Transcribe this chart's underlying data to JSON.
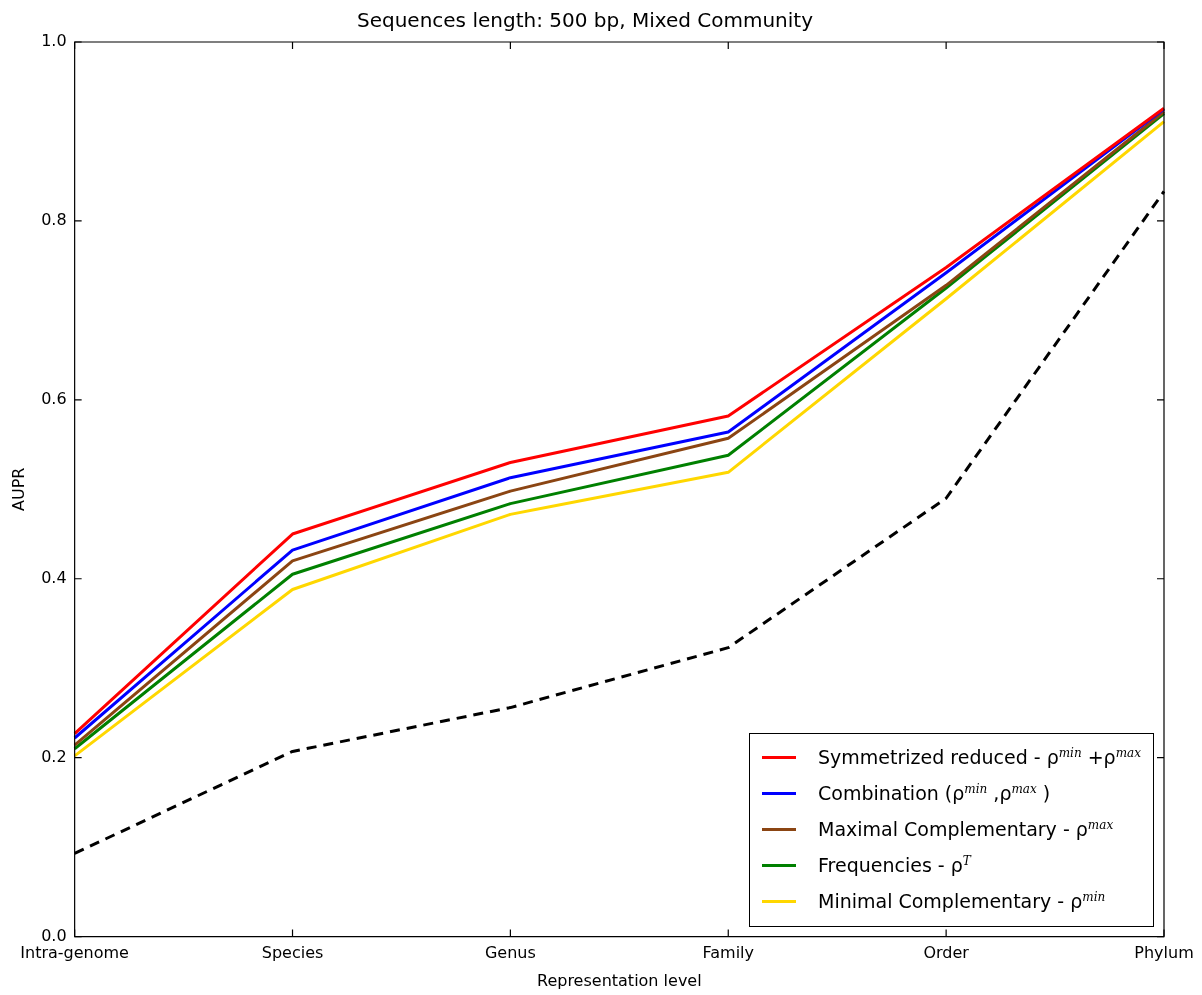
{
  "chart_data": {
    "type": "line",
    "title": "Sequences length: 500 bp, Mixed Community",
    "xlabel": "Representation level",
    "ylabel": "AUPR",
    "categories": [
      "Intra-genome",
      "Species",
      "Genus",
      "Family",
      "Order",
      "Phylum"
    ],
    "ylim": [
      0,
      1
    ],
    "yticks": [
      {
        "value": 0,
        "label": "0.0"
      },
      {
        "value": 0.2,
        "label": "0.2"
      },
      {
        "value": 0.4,
        "label": "0.4"
      },
      {
        "value": 0.6,
        "label": "0.6"
      },
      {
        "value": 0.8,
        "label": "0.8"
      },
      {
        "value": 1,
        "label": "1.0"
      }
    ],
    "grid": false,
    "legend": "bottom right",
    "marker": "none",
    "line_style": "solid",
    "series": [
      {
        "name": "Symmetrized reduced - ρ$^{min}$ +ρ$^{max}$",
        "color": "#ff0000",
        "values": [
          0.227,
          0.45,
          0.53,
          0.582,
          0.748,
          0.926
        ]
      },
      {
        "name": "Combination (ρ$^{min}$ ,ρ$^{max}$ )",
        "color": "#0000ff",
        "values": [
          0.222,
          0.432,
          0.513,
          0.564,
          0.742,
          0.925
        ]
      },
      {
        "name": "Maximal Complementary - ρ$^{max}$",
        "color": "#8b4513",
        "values": [
          0.214,
          0.42,
          0.498,
          0.557,
          0.728,
          0.922
        ]
      },
      {
        "name": "Frequencies - ρ$^{T}$",
        "color": "#008000",
        "values": [
          0.21,
          0.405,
          0.484,
          0.538,
          0.725,
          0.92
        ]
      },
      {
        "name": "Minimal Complementary - ρ$^{min}$",
        "color": "#ffd700",
        "values": [
          0.202,
          0.388,
          0.472,
          0.519,
          0.713,
          0.911
        ]
      },
      {
        "color": "#000000",
        "line_style": "dashed",
        "values": [
          0.093,
          0.207,
          0.256,
          0.323,
          0.49,
          0.833
        ]
      }
    ]
  }
}
